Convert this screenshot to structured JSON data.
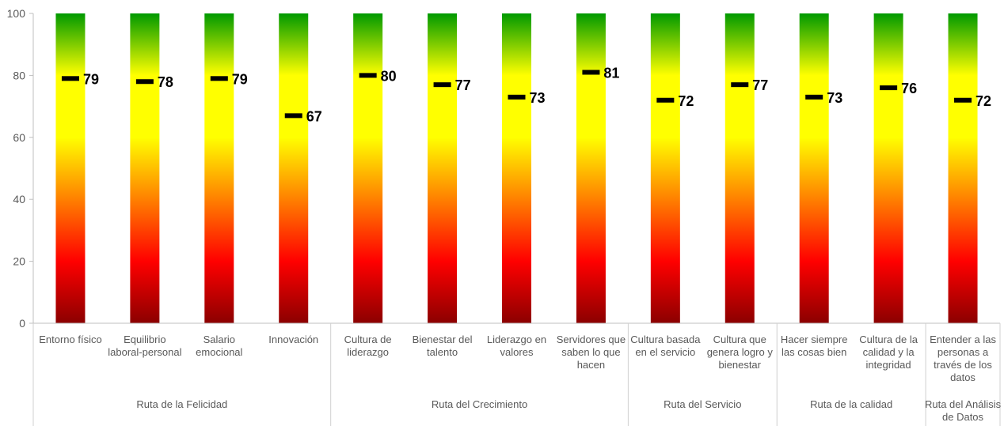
{
  "chart_data": {
    "type": "bar",
    "title": "",
    "xlabel": "",
    "ylabel": "",
    "ylim": [
      0,
      100
    ],
    "yticks": [
      0,
      20,
      40,
      60,
      80,
      100
    ],
    "grid": false,
    "legend": "none",
    "bar_gradient": [
      "#8b0000",
      "#ff0000",
      "#ff8000",
      "#ffff00",
      "#ffff00",
      "#009900"
    ],
    "marker_color": "#000000",
    "categories": [
      "Entorno físico",
      "Equilibrio laboral-personal",
      "Salario emocional",
      "Innovación",
      "Cultura de liderazgo",
      "Bienestar del talento",
      "Liderazgo en valores",
      "Servidores que saben lo que hacen",
      "Cultura basada en el servicio",
      "Cultura que genera logro y bienestar",
      "Hacer siempre las cosas bien",
      "Cultura de la calidad y la integridad",
      "Entender a las personas a través de los datos"
    ],
    "category_label_lines": [
      [
        "Entorno físico"
      ],
      [
        "Equilibrio",
        "laboral-personal"
      ],
      [
        "Salario",
        "emocional"
      ],
      [
        "Innovación"
      ],
      [
        "Cultura de",
        "liderazgo"
      ],
      [
        "Bienestar del",
        "talento"
      ],
      [
        "Liderazgo en",
        "valores"
      ],
      [
        "Servidores que",
        "saben lo que",
        "hacen"
      ],
      [
        "Cultura basada",
        "en el servicio"
      ],
      [
        "Cultura que",
        "genera logro y",
        "bienestar"
      ],
      [
        "Hacer siempre",
        "las cosas bien"
      ],
      [
        "Cultura de la",
        "calidad y la",
        "integridad"
      ],
      [
        "Entender a las",
        "personas a",
        "través de los",
        "datos"
      ]
    ],
    "values": [
      79,
      78,
      79,
      67,
      80,
      77,
      73,
      81,
      72,
      77,
      73,
      76,
      72
    ],
    "groups": [
      {
        "label": "Ruta de la Felicidad",
        "count": 4,
        "label_lines": [
          "Ruta de la Felicidad"
        ]
      },
      {
        "label": "Ruta del Crecimiento",
        "count": 4,
        "label_lines": [
          "Ruta del Crecimiento"
        ]
      },
      {
        "label": "Ruta del Servicio",
        "count": 2,
        "label_lines": [
          "Ruta del Servicio"
        ]
      },
      {
        "label": "Ruta de la calidad",
        "count": 2,
        "label_lines": [
          "Ruta de la calidad"
        ]
      },
      {
        "label": "Ruta del Análisis de Datos",
        "count": 1,
        "label_lines": [
          "Ruta del Análisis",
          "de Datos"
        ]
      }
    ]
  }
}
